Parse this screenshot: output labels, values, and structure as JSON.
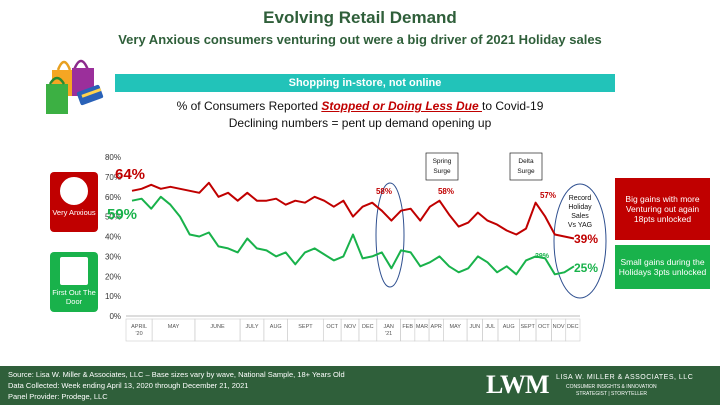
{
  "header": {
    "title": "Evolving Retail Demand",
    "subtitle": "Very Anxious consumers venturing out were a big driver of 2021 Holiday sales"
  },
  "banner": "Shopping in-store, not online",
  "metric": {
    "prefix": "% of Consumers Reported ",
    "highlight": "Stopped or Doing Less Due ",
    "suffix": "to Covid-19",
    "line2": "Declining numbers = pent up demand opening up"
  },
  "badges": {
    "very_anxious": "Very Anxious",
    "first_out": "First Out The Door"
  },
  "annotations": {
    "spring_surge": "Spring Surge",
    "delta_surge": "Delta Surge",
    "record_holiday": "Record Holiday Sales Vs YAG",
    "callout_red": "Big gains with more Venturing out again 18pts unlocked",
    "callout_green": "Small gains during the Holidays 3pts unlocked"
  },
  "colors": {
    "very_anxious": "#c00000",
    "first_out": "#19b24b",
    "title": "#2f5f3a",
    "banner": "#22c3b9",
    "circle": "#2e4f8f"
  },
  "chart_data": {
    "type": "line",
    "ylim": [
      0,
      80
    ],
    "yticks": [
      "0%",
      "10%",
      "20%",
      "30%",
      "40%",
      "50%",
      "60%",
      "70%",
      "80%"
    ],
    "x_labels": [
      "APRIL '20",
      "MAY",
      "JUNE",
      "JULY",
      "AUG",
      "SEPT",
      "OCT",
      "NOV",
      "DEC",
      "JAN '21",
      "FEB",
      "MAR",
      "APR",
      "MAY",
      "JUN",
      "JUL",
      "AUG",
      "SEPT",
      "OCT",
      "NOV",
      "DEC"
    ],
    "series": [
      {
        "name": "Very Anxious",
        "values": [
          63,
          64,
          66,
          64,
          65,
          64,
          63,
          62,
          67,
          60,
          62,
          58,
          62,
          58,
          58,
          59,
          56,
          58,
          57,
          60,
          58,
          55,
          58,
          50,
          55,
          57,
          53,
          48,
          53,
          54,
          48,
          55,
          58,
          51,
          45,
          47,
          52,
          48,
          46,
          43,
          41,
          44,
          57,
          50,
          41,
          40,
          39
        ]
      },
      {
        "name": "First Out The Door",
        "values": [
          58,
          59,
          54,
          60,
          56,
          50,
          41,
          40,
          42,
          35,
          34,
          32,
          39,
          34,
          33,
          30,
          32,
          26,
          32,
          34,
          31,
          28,
          30,
          41,
          29,
          30,
          32,
          24,
          33,
          32,
          25,
          27,
          30,
          25,
          22,
          24,
          30,
          27,
          22,
          25,
          21,
          28,
          30,
          29,
          21,
          22,
          25
        ]
      }
    ],
    "data_labels": [
      {
        "series": "Very Anxious",
        "text": "64%"
      },
      {
        "series": "First Out The Door",
        "text": "59%"
      },
      {
        "series": "Very Anxious",
        "text": "58%"
      },
      {
        "series": "Very Anxious",
        "text": "58%"
      },
      {
        "series": "Very Anxious",
        "text": "57%"
      },
      {
        "series": "Very Anxious",
        "text": "39%"
      },
      {
        "series": "First Out The Door",
        "text": "29%"
      },
      {
        "series": "First Out The Door",
        "text": "25%"
      }
    ]
  },
  "footer": {
    "line1": "Source: Lisa W. Miller & Associates, LLC  –  Base sizes vary by wave, National Sample, 18+ Years Old",
    "line2": "Data Collected: Week ending April 13, 2020 through December 21, 2021",
    "line3": "Panel Provider:  Prodege, LLC",
    "logo": "LWM",
    "company": "LISA W. MILLER & ASSOCIATES, LLC",
    "tagline1": "CONSUMER INSIGHTS & INNOVATION",
    "tagline2": "STRATEGIST | STORYTELLER"
  }
}
